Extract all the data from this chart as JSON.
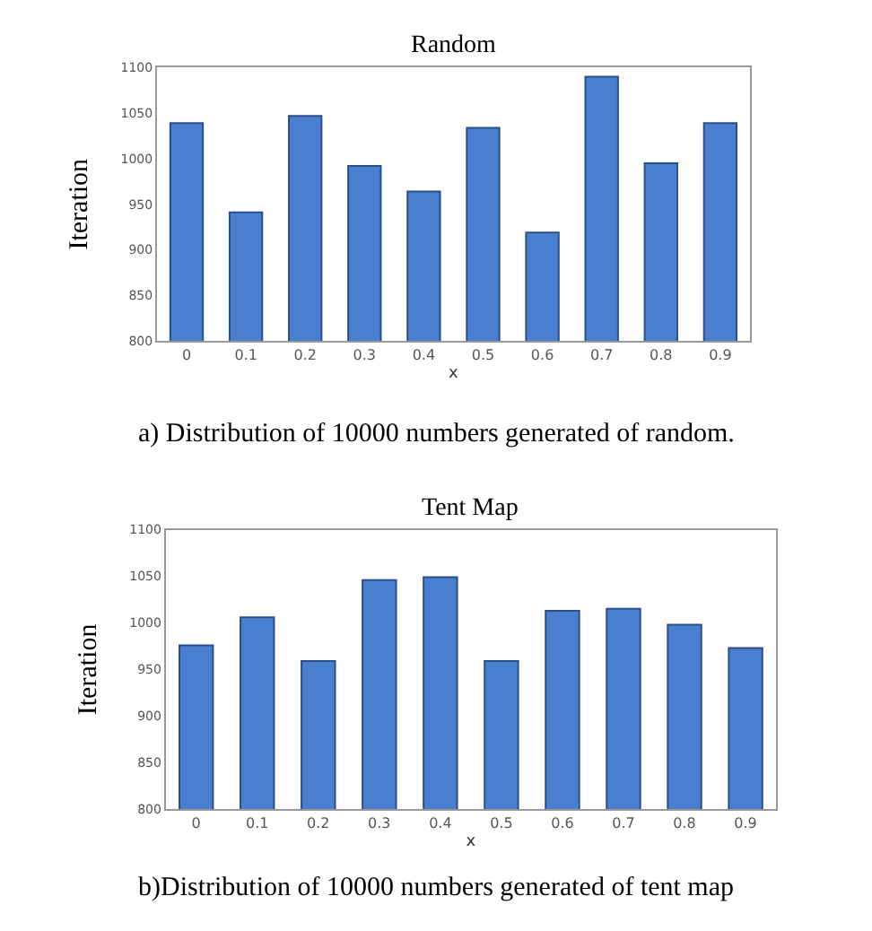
{
  "chart_data": [
    {
      "type": "bar",
      "title": "Random",
      "xlabel": "x",
      "ylabel": "Iteration",
      "categories": [
        "0",
        "0.1",
        "0.2",
        "0.3",
        "0.4",
        "0.5",
        "0.6",
        "0.7",
        "0.8",
        "0.9"
      ],
      "values": [
        1039,
        941,
        1047,
        992,
        964,
        1034,
        919,
        1090,
        995,
        1039
      ],
      "color": "#4a7fd0",
      "ylim": [
        800,
        1100
      ],
      "yticks": [
        800,
        850,
        900,
        950,
        1000,
        1050,
        1100
      ],
      "annotations": [
        "a) Distribution of 10000 numbers generated of random."
      ]
    },
    {
      "type": "bar",
      "title": "Tent Map",
      "xlabel": "x",
      "ylabel": "Iteration",
      "categories": [
        "0",
        "0.1",
        "0.2",
        "0.3",
        "0.4",
        "0.5",
        "0.6",
        "0.7",
        "0.8",
        "0.9"
      ],
      "values": [
        976,
        1006,
        959,
        1046,
        1049,
        959,
        1013,
        1015,
        998,
        973
      ],
      "color": "#4a7fd0",
      "ylim": [
        800,
        1100
      ],
      "yticks": [
        800,
        850,
        900,
        950,
        1000,
        1050,
        1100
      ],
      "annotations": [
        "b)Distribution of 10000 numbers generated of tent map"
      ]
    }
  ]
}
